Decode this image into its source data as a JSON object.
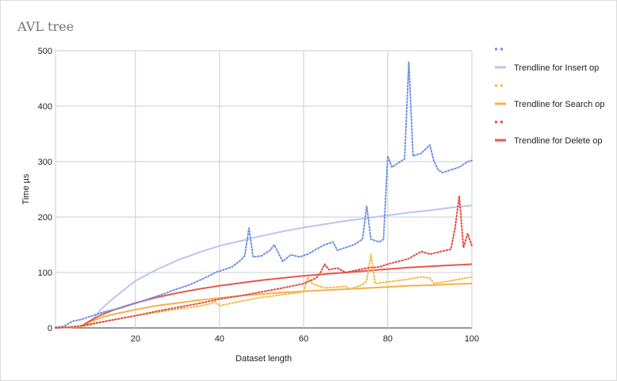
{
  "chart_data": {
    "type": "line",
    "title": "AVL tree",
    "xlabel": "Dataset length",
    "ylabel": "Time µs",
    "xlim": [
      1,
      100
    ],
    "ylim": [
      0,
      500
    ],
    "x_ticks": [
      20,
      40,
      60,
      80,
      100
    ],
    "y_ticks": [
      0,
      100,
      200,
      300,
      400,
      500
    ],
    "grid": true,
    "legend_position": "right",
    "series": [
      {
        "name": "",
        "role": "data",
        "color": "#6d8ee3",
        "style": "dotted",
        "points": [
          [
            1,
            1
          ],
          [
            3,
            3
          ],
          [
            5,
            12
          ],
          [
            7,
            15
          ],
          [
            9,
            20
          ],
          [
            11,
            25
          ],
          [
            13,
            30
          ],
          [
            15,
            33
          ],
          [
            17,
            37
          ],
          [
            19,
            42
          ],
          [
            21,
            47
          ],
          [
            23,
            52
          ],
          [
            25,
            57
          ],
          [
            27,
            62
          ],
          [
            29,
            68
          ],
          [
            31,
            73
          ],
          [
            33,
            78
          ],
          [
            35,
            85
          ],
          [
            37,
            92
          ],
          [
            39,
            100
          ],
          [
            41,
            105
          ],
          [
            43,
            110
          ],
          [
            45,
            122
          ],
          [
            46,
            130
          ],
          [
            47,
            180
          ],
          [
            48,
            128
          ],
          [
            50,
            130
          ],
          [
            52,
            140
          ],
          [
            53,
            150
          ],
          [
            55,
            120
          ],
          [
            57,
            132
          ],
          [
            59,
            128
          ],
          [
            61,
            133
          ],
          [
            63,
            142
          ],
          [
            65,
            150
          ],
          [
            67,
            155
          ],
          [
            68,
            140
          ],
          [
            70,
            145
          ],
          [
            72,
            150
          ],
          [
            74,
            160
          ],
          [
            75,
            220
          ],
          [
            76,
            160
          ],
          [
            78,
            155
          ],
          [
            79,
            160
          ],
          [
            80,
            310
          ],
          [
            81,
            290
          ],
          [
            83,
            300
          ],
          [
            84,
            305
          ],
          [
            85,
            480
          ],
          [
            86,
            310
          ],
          [
            88,
            315
          ],
          [
            90,
            330
          ],
          [
            91,
            300
          ],
          [
            92,
            285
          ],
          [
            93,
            280
          ],
          [
            95,
            285
          ],
          [
            97,
            290
          ],
          [
            99,
            300
          ],
          [
            100,
            302
          ]
        ]
      },
      {
        "name": "Trendline for Insert op",
        "role": "trend",
        "color": "#b7c6f2",
        "style": "solid",
        "points": [
          [
            9,
            10
          ],
          [
            10,
            17
          ],
          [
            12,
            35
          ],
          [
            15,
            55
          ],
          [
            20,
            85
          ],
          [
            25,
            105
          ],
          [
            30,
            122
          ],
          [
            35,
            136
          ],
          [
            40,
            148
          ],
          [
            45,
            157
          ],
          [
            50,
            166
          ],
          [
            55,
            174
          ],
          [
            60,
            181
          ],
          [
            65,
            187
          ],
          [
            70,
            193
          ],
          [
            75,
            198
          ],
          [
            80,
            203
          ],
          [
            85,
            208
          ],
          [
            90,
            212
          ],
          [
            95,
            217
          ],
          [
            100,
            221
          ]
        ]
      },
      {
        "name": "",
        "role": "data",
        "color": "#f5b942",
        "style": "dotted",
        "points": [
          [
            1,
            0
          ],
          [
            5,
            1
          ],
          [
            8,
            3
          ],
          [
            10,
            7
          ],
          [
            15,
            15
          ],
          [
            20,
            22
          ],
          [
            25,
            28
          ],
          [
            30,
            34
          ],
          [
            35,
            39
          ],
          [
            38,
            44
          ],
          [
            39,
            47
          ],
          [
            40,
            40
          ],
          [
            45,
            48
          ],
          [
            50,
            55
          ],
          [
            55,
            60
          ],
          [
            60,
            65
          ],
          [
            61,
            92
          ],
          [
            62,
            80
          ],
          [
            65,
            72
          ],
          [
            70,
            75
          ],
          [
            71,
            70
          ],
          [
            74,
            78
          ],
          [
            75,
            85
          ],
          [
            76,
            133
          ],
          [
            77,
            80
          ],
          [
            80,
            83
          ],
          [
            85,
            88
          ],
          [
            88,
            92
          ],
          [
            90,
            90
          ],
          [
            91,
            80
          ],
          [
            95,
            85
          ],
          [
            100,
            92
          ]
        ]
      },
      {
        "name": "Trendline for Search op",
        "role": "trend",
        "color": "#f6b04a",
        "style": "solid",
        "points": [
          [
            7,
            3
          ],
          [
            9,
            10
          ],
          [
            12,
            19
          ],
          [
            15,
            25
          ],
          [
            20,
            33
          ],
          [
            25,
            40
          ],
          [
            30,
            45
          ],
          [
            35,
            50
          ],
          [
            40,
            54
          ],
          [
            45,
            58
          ],
          [
            50,
            61
          ],
          [
            55,
            64
          ],
          [
            60,
            66
          ],
          [
            65,
            68
          ],
          [
            70,
            70
          ],
          [
            75,
            72
          ],
          [
            80,
            74
          ],
          [
            85,
            76
          ],
          [
            90,
            77
          ],
          [
            95,
            79
          ],
          [
            100,
            80
          ]
        ]
      },
      {
        "name": "",
        "role": "data",
        "color": "#e04a3f",
        "style": "dotted",
        "points": [
          [
            1,
            0
          ],
          [
            5,
            2
          ],
          [
            8,
            5
          ],
          [
            10,
            8
          ],
          [
            15,
            15
          ],
          [
            20,
            22
          ],
          [
            25,
            30
          ],
          [
            30,
            37
          ],
          [
            35,
            44
          ],
          [
            40,
            52
          ],
          [
            45,
            58
          ],
          [
            50,
            65
          ],
          [
            55,
            72
          ],
          [
            60,
            80
          ],
          [
            63,
            90
          ],
          [
            64,
            100
          ],
          [
            65,
            115
          ],
          [
            66,
            105
          ],
          [
            68,
            108
          ],
          [
            70,
            100
          ],
          [
            75,
            108
          ],
          [
            78,
            110
          ],
          [
            80,
            115
          ],
          [
            85,
            125
          ],
          [
            88,
            138
          ],
          [
            90,
            133
          ],
          [
            95,
            142
          ],
          [
            96,
            180
          ],
          [
            97,
            238
          ],
          [
            98,
            145
          ],
          [
            99,
            170
          ],
          [
            100,
            148
          ]
        ]
      },
      {
        "name": "Trendline for Delete op",
        "role": "trend",
        "color": "#e8574d",
        "style": "solid",
        "points": [
          [
            7,
            2
          ],
          [
            9,
            12
          ],
          [
            12,
            24
          ],
          [
            15,
            33
          ],
          [
            20,
            45
          ],
          [
            25,
            55
          ],
          [
            30,
            63
          ],
          [
            35,
            70
          ],
          [
            40,
            76
          ],
          [
            45,
            81
          ],
          [
            50,
            86
          ],
          [
            55,
            90
          ],
          [
            60,
            94
          ],
          [
            65,
            97
          ],
          [
            70,
            100
          ],
          [
            75,
            103
          ],
          [
            80,
            106
          ],
          [
            85,
            109
          ],
          [
            90,
            111
          ],
          [
            95,
            113
          ],
          [
            100,
            115
          ]
        ]
      }
    ]
  }
}
